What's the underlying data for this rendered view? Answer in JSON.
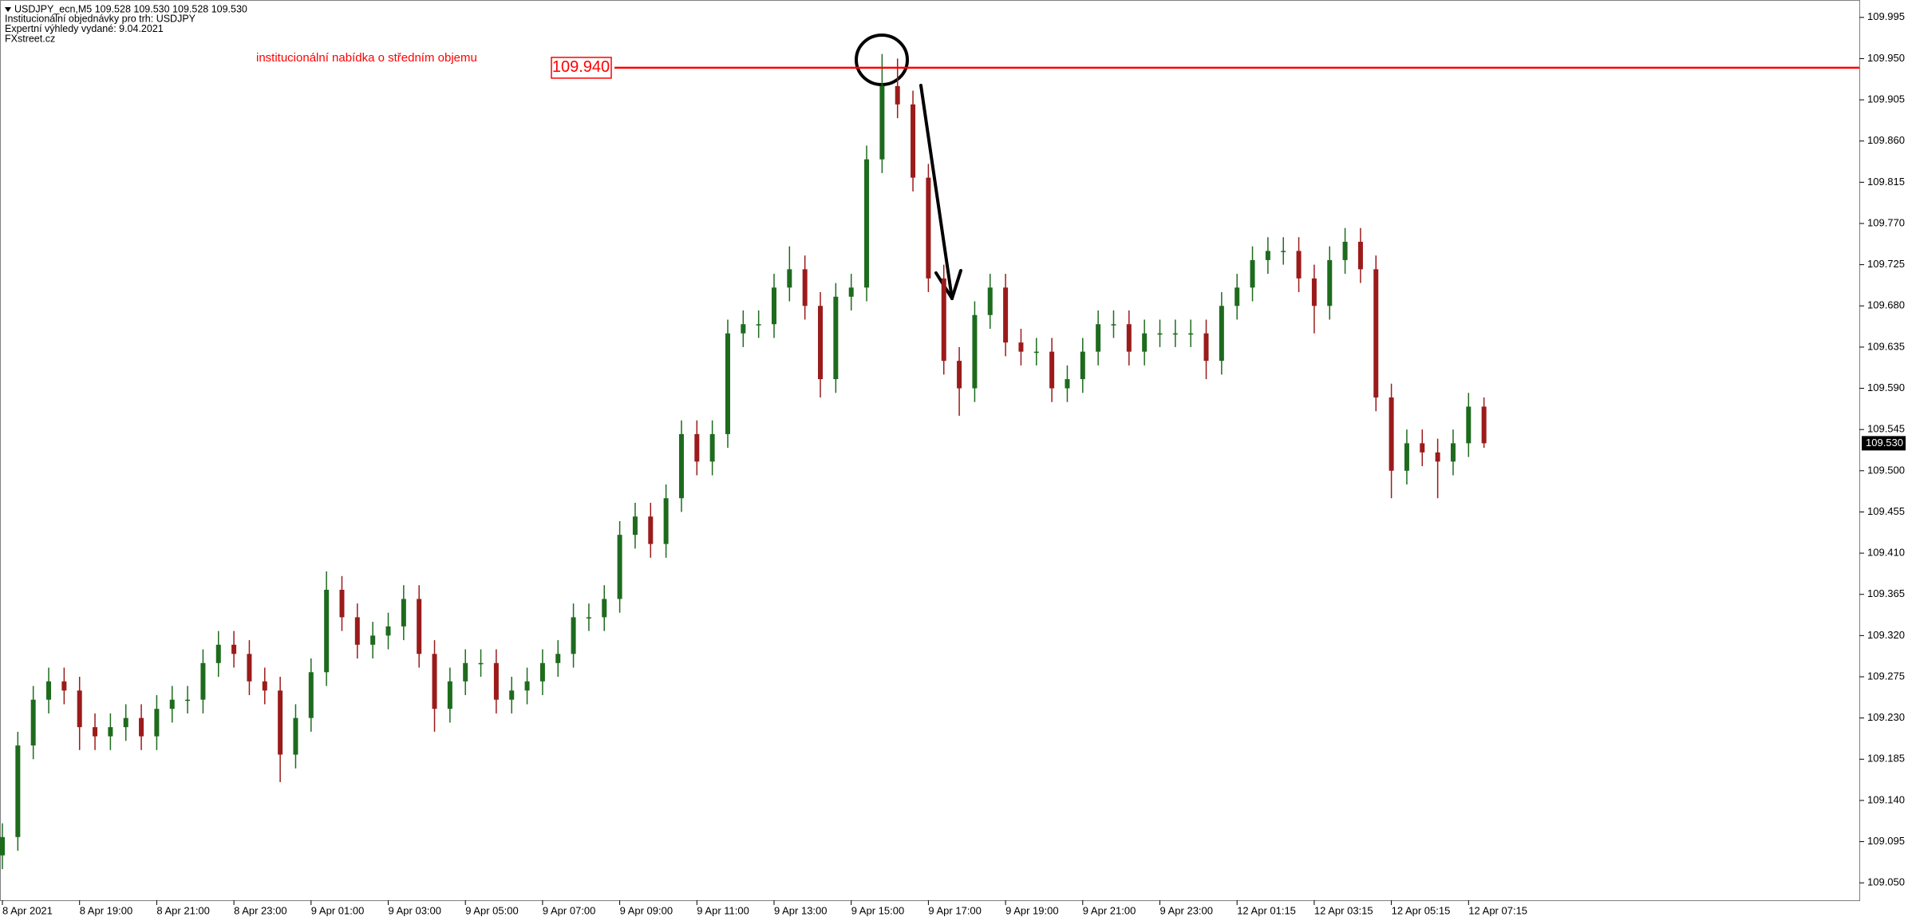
{
  "chart_data": {
    "type": "candlestick",
    "header": [
      "USDJPY_ecn,M5  109.528 109.530 109.528 109.530",
      "Institucionální objednávky pro trh: USDJPY",
      "Expertní výhledy vydané: 9.04.2021",
      "FXstreet.cz"
    ],
    "categories": [
      "8 Apr 2021",
      null,
      null,
      null,
      null,
      "8 Apr 19:00",
      null,
      null,
      null,
      null,
      "8 Apr 21:00",
      null,
      null,
      null,
      null,
      "8 Apr 23:00",
      null,
      null,
      null,
      null,
      "9 Apr 01:00",
      null,
      null,
      null,
      null,
      "9 Apr 03:00",
      null,
      null,
      null,
      null,
      "9 Apr 05:00",
      null,
      null,
      null,
      null,
      "9 Apr 07:00",
      null,
      null,
      null,
      null,
      "9 Apr 09:00",
      null,
      null,
      null,
      null,
      "9 Apr 11:00",
      null,
      null,
      null,
      null,
      "9 Apr 13:00",
      null,
      null,
      null,
      null,
      "9 Apr 15:00",
      null,
      null,
      null,
      null,
      "9 Apr 17:00",
      null,
      null,
      null,
      null,
      "9 Apr 19:00",
      null,
      null,
      null,
      null,
      "9 Apr 21:00",
      null,
      null,
      null,
      null,
      "9 Apr 23:00",
      null,
      null,
      null,
      null,
      "12 Apr 01:15",
      null,
      null,
      null,
      null,
      "12 Apr 03:15",
      null,
      null,
      null,
      null,
      "12 Apr 05:15",
      null,
      null,
      null,
      null,
      "12 Apr 07:15",
      null
    ],
    "open": [
      109.08,
      109.1,
      109.2,
      109.25,
      109.27,
      109.26,
      109.22,
      109.21,
      109.22,
      109.23,
      109.21,
      109.24,
      109.25,
      109.25,
      109.29,
      109.31,
      109.3,
      109.27,
      109.26,
      109.19,
      109.23,
      109.28,
      109.37,
      109.34,
      109.31,
      109.32,
      109.33,
      109.36,
      109.3,
      109.24,
      109.27,
      109.29,
      109.29,
      109.25,
      109.26,
      109.27,
      109.29,
      109.3,
      109.34,
      109.34,
      109.36,
      109.43,
      109.45,
      109.42,
      109.47,
      109.54,
      109.51,
      109.54,
      109.65,
      109.66,
      109.66,
      109.7,
      109.72,
      109.68,
      109.6,
      109.69,
      109.7,
      109.84,
      109.92,
      109.9,
      109.82,
      109.71,
      109.62,
      109.59,
      109.67,
      109.7,
      109.64,
      109.63,
      109.63,
      109.59,
      109.6,
      109.63,
      109.66,
      109.66,
      109.63,
      109.65,
      109.65,
      109.65,
      109.65,
      109.62,
      109.68,
      109.7,
      109.73,
      109.74,
      109.74,
      109.71,
      109.68,
      109.73,
      109.75,
      109.72,
      109.58,
      109.5,
      109.53,
      109.52,
      109.51,
      109.53,
      109.57
    ],
    "high": [
      109.115,
      109.215,
      109.265,
      109.285,
      109.285,
      109.275,
      109.235,
      109.235,
      109.245,
      109.245,
      109.255,
      109.265,
      109.265,
      109.305,
      109.325,
      109.325,
      109.315,
      109.285,
      109.275,
      109.245,
      109.295,
      109.39,
      109.385,
      109.355,
      109.335,
      109.345,
      109.375,
      109.375,
      109.315,
      109.285,
      109.305,
      109.305,
      109.305,
      109.275,
      109.285,
      109.305,
      109.315,
      109.355,
      109.355,
      109.375,
      109.445,
      109.465,
      109.465,
      109.485,
      109.555,
      109.555,
      109.555,
      109.665,
      109.675,
      109.675,
      109.715,
      109.745,
      109.735,
      109.695,
      109.705,
      109.715,
      109.855,
      109.955,
      109.95,
      109.915,
      109.835,
      109.725,
      109.635,
      109.685,
      109.715,
      109.715,
      109.655,
      109.645,
      109.645,
      109.615,
      109.645,
      109.675,
      109.675,
      109.675,
      109.665,
      109.665,
      109.665,
      109.665,
      109.665,
      109.695,
      109.715,
      109.745,
      109.755,
      109.755,
      109.755,
      109.725,
      109.745,
      109.765,
      109.765,
      109.735,
      109.595,
      109.545,
      109.545,
      109.535,
      109.545,
      109.585,
      109.58
    ],
    "low": [
      109.065,
      109.085,
      109.185,
      109.235,
      109.245,
      109.195,
      109.195,
      109.195,
      109.205,
      109.195,
      109.195,
      109.225,
      109.235,
      109.235,
      109.275,
      109.285,
      109.255,
      109.245,
      109.16,
      109.175,
      109.215,
      109.265,
      109.325,
      109.295,
      109.295,
      109.305,
      109.315,
      109.285,
      109.215,
      109.225,
      109.255,
      109.275,
      109.235,
      109.235,
      109.245,
      109.255,
      109.275,
      109.285,
      109.325,
      109.325,
      109.345,
      109.415,
      109.405,
      109.405,
      109.455,
      109.495,
      109.495,
      109.525,
      109.635,
      109.645,
      109.645,
      109.685,
      109.665,
      109.58,
      109.585,
      109.675,
      109.685,
      109.825,
      109.885,
      109.805,
      109.695,
      109.605,
      109.56,
      109.575,
      109.655,
      109.625,
      109.615,
      109.615,
      109.575,
      109.575,
      109.585,
      109.615,
      109.645,
      109.615,
      109.615,
      109.635,
      109.635,
      109.635,
      109.6,
      109.605,
      109.665,
      109.685,
      109.715,
      109.725,
      109.695,
      109.65,
      109.665,
      109.715,
      109.705,
      109.565,
      109.47,
      109.485,
      109.505,
      109.47,
      109.495,
      109.515,
      109.525
    ],
    "close": [
      109.1,
      109.2,
      109.25,
      109.27,
      109.26,
      109.22,
      109.21,
      109.22,
      109.23,
      109.21,
      109.24,
      109.25,
      109.25,
      109.29,
      109.31,
      109.3,
      109.27,
      109.26,
      109.19,
      109.23,
      109.28,
      109.37,
      109.34,
      109.31,
      109.32,
      109.33,
      109.36,
      109.3,
      109.24,
      109.27,
      109.29,
      109.29,
      109.25,
      109.26,
      109.27,
      109.29,
      109.3,
      109.34,
      109.34,
      109.36,
      109.43,
      109.45,
      109.42,
      109.47,
      109.54,
      109.51,
      109.54,
      109.65,
      109.66,
      109.66,
      109.7,
      109.72,
      109.68,
      109.6,
      109.69,
      109.7,
      109.84,
      109.92,
      109.9,
      109.82,
      109.71,
      109.62,
      109.59,
      109.67,
      109.7,
      109.64,
      109.63,
      109.63,
      109.59,
      109.6,
      109.63,
      109.66,
      109.66,
      109.63,
      109.65,
      109.65,
      109.65,
      109.65,
      109.62,
      109.68,
      109.7,
      109.73,
      109.74,
      109.74,
      109.71,
      109.68,
      109.73,
      109.75,
      109.72,
      109.58,
      109.5,
      109.53,
      109.52,
      109.51,
      109.53,
      109.57,
      109.53
    ],
    "up_color": "#1e6b1e",
    "down_color": "#9b1b1b",
    "ylim": [
      109.031,
      110.014
    ],
    "yticks": [
      109.995,
      {
        "value": 109.95,
        "label": "109.950"
      },
      109.905,
      {
        "value": 109.86,
        "label": "109.860"
      },
      109.815,
      {
        "value": 109.77,
        "label": "109.770"
      },
      109.725,
      {
        "value": 109.68,
        "label": "109.680"
      },
      109.635,
      {
        "value": 109.59,
        "label": "109.590"
      },
      109.545,
      {
        "value": 109.5,
        "label": "109.500"
      },
      109.455,
      {
        "value": 109.41,
        "label": "109.410"
      },
      109.365,
      {
        "value": 109.32,
        "label": "109.320"
      },
      109.275,
      {
        "value": 109.23,
        "label": "109.230"
      },
      109.185,
      {
        "value": 109.14,
        "label": "109.140"
      },
      109.095,
      {
        "value": 109.05,
        "label": "109.050"
      }
    ],
    "level": {
      "value": 109.94,
      "label": "109.940",
      "color": "#ff0000",
      "text": "institucionální nabídka o středním objemu"
    },
    "current_price": {
      "value": 109.53,
      "label": "109.530"
    }
  }
}
